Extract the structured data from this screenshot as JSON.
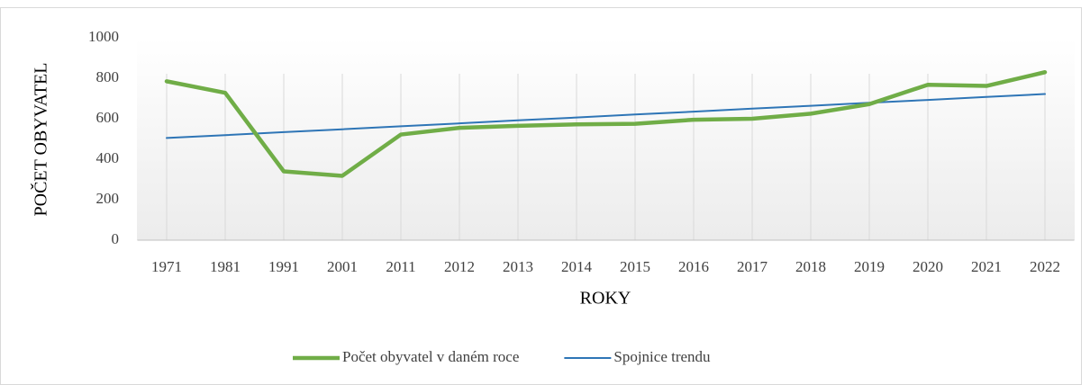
{
  "chart_data": {
    "type": "line",
    "x_label": "ROKY",
    "y_label": "POČET OBYVATEL",
    "categories": [
      "1971",
      "1981",
      "1991",
      "2001",
      "2011",
      "2012",
      "2013",
      "2014",
      "2015",
      "2016",
      "2017",
      "2018",
      "2019",
      "2020",
      "2021",
      "2022"
    ],
    "series": [
      {
        "name": "Počet obyvatel v daném roce",
        "color": "#70ad47",
        "width": 4.5,
        "values": [
          785,
          728,
          340,
          318,
          522,
          555,
          565,
          572,
          575,
          595,
          600,
          625,
          672,
          768,
          762,
          830
        ]
      },
      {
        "name": "Spojnice trendu",
        "color": "#2e75b6",
        "width": 2,
        "values": [
          505,
          519,
          534,
          548,
          563,
          577,
          592,
          606,
          621,
          635,
          650,
          664,
          679,
          693,
          708,
          722
        ]
      }
    ],
    "ylim": [
      0,
      1000
    ],
    "yticks": [
      0,
      200,
      400,
      600,
      800,
      1000
    ],
    "grid": "x",
    "legend": "bottom"
  }
}
